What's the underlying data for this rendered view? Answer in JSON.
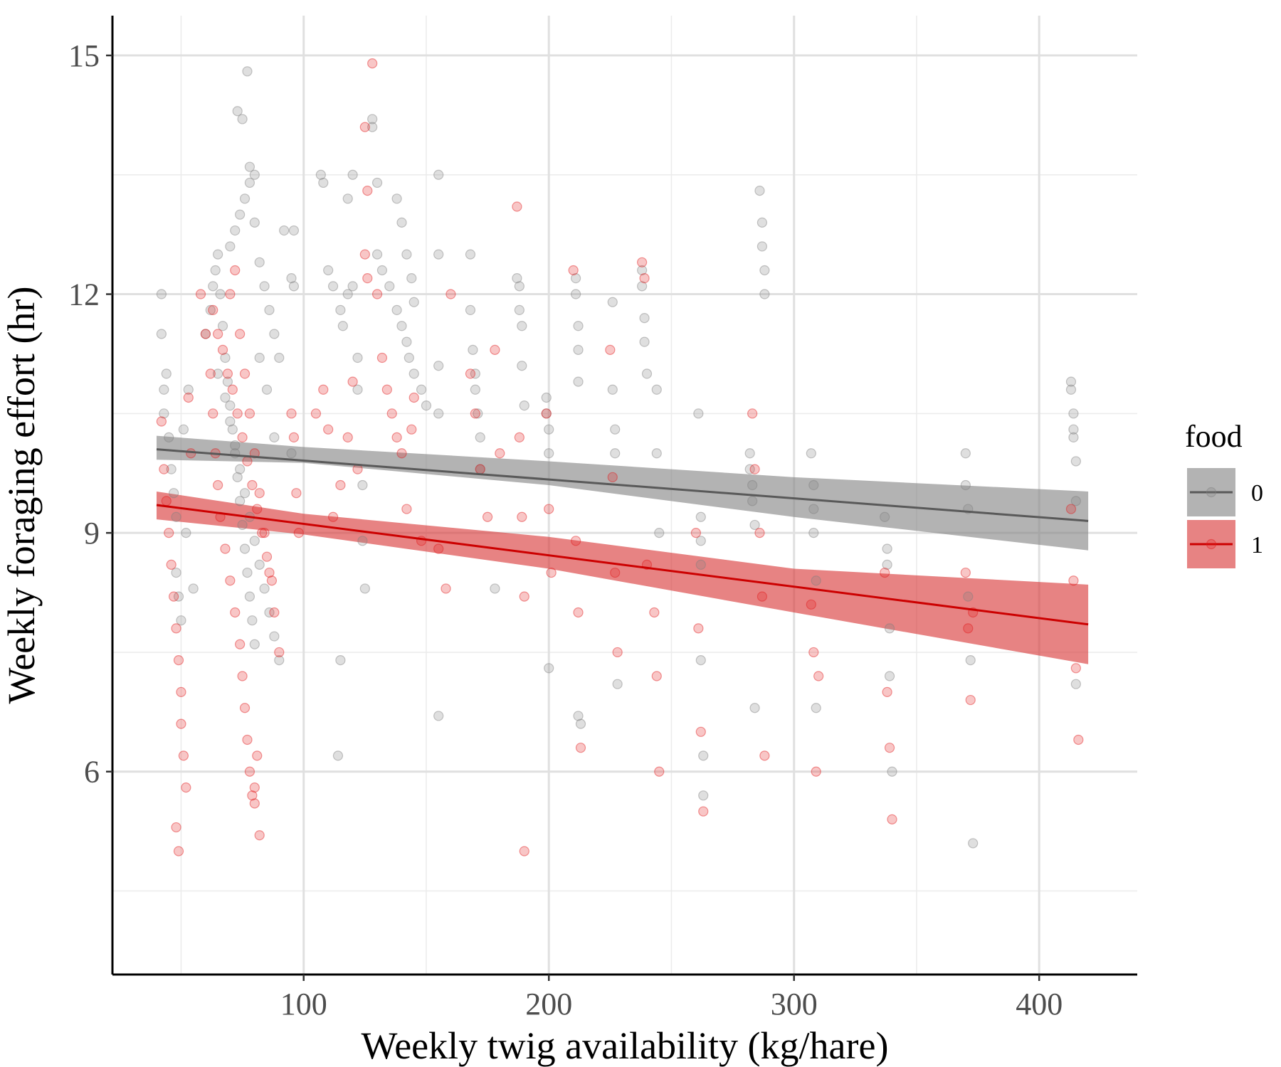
{
  "chart_data": {
    "type": "scatter",
    "title": "",
    "xlabel": "Weekly twig availability (kg/hare)",
    "ylabel": "Weekly foraging effort (hr)",
    "xlim": [
      22,
      440
    ],
    "ylim": [
      3.45,
      15.5
    ],
    "x_ticks": [
      100,
      200,
      300,
      400
    ],
    "y_ticks": [
      6,
      9,
      12,
      15
    ],
    "x_tick_labels": [
      "100",
      "200",
      "300",
      "400"
    ],
    "y_tick_labels": [
      "6",
      "9",
      "12",
      "15"
    ],
    "grid": true,
    "legend": {
      "title": "food",
      "placement": "right"
    },
    "point_opacity": 0.25,
    "series": [
      {
        "name": "0",
        "color": "#808080",
        "fit_line_color": "#595959",
        "band_color": "#808080",
        "fit": {
          "x": [
            40,
            420
          ],
          "y": [
            10.05,
            9.15
          ]
        },
        "band": {
          "x": [
            40,
            100,
            200,
            300,
            420
          ],
          "lower": [
            9.92,
            9.88,
            9.6,
            9.2,
            8.78
          ],
          "upper": [
            10.22,
            10.08,
            9.9,
            9.7,
            9.52
          ]
        },
        "x": [
          42,
          42,
          43,
          43,
          44,
          45,
          46,
          47,
          48,
          48,
          49,
          50,
          51,
          52,
          53,
          55,
          60,
          62,
          63,
          64,
          65,
          66,
          67,
          68,
          69,
          70,
          71,
          72,
          73,
          74,
          75,
          76,
          77,
          78,
          79,
          80,
          65,
          68,
          70,
          72,
          74,
          76,
          78,
          80,
          82,
          84,
          86,
          88,
          90,
          70,
          72,
          74,
          76,
          78,
          80,
          82,
          84,
          86,
          88,
          90,
          92,
          95,
          73,
          75,
          77,
          78,
          80,
          82,
          85,
          88,
          95,
          96,
          96,
          107,
          108,
          110,
          112,
          115,
          116,
          118,
          118,
          120,
          120,
          122,
          122,
          124,
          124,
          125,
          114,
          115,
          128,
          128,
          130,
          130,
          132,
          135,
          138,
          140,
          142,
          143,
          145,
          148,
          150,
          138,
          140,
          142,
          144,
          145,
          155,
          155,
          155,
          155,
          155,
          168,
          168,
          169,
          170,
          170,
          171,
          172,
          172,
          178,
          187,
          188,
          188,
          189,
          189,
          190,
          199,
          199,
          200,
          200,
          200,
          211,
          211,
          212,
          212,
          212,
          212,
          213,
          226,
          226,
          227,
          227,
          228,
          238,
          238,
          239,
          239,
          240,
          244,
          244,
          245,
          261,
          262,
          262,
          262,
          262,
          263,
          263,
          282,
          282,
          283,
          283,
          284,
          284,
          286,
          287,
          287,
          288,
          288,
          307,
          308,
          308,
          308,
          309,
          309,
          337,
          338,
          338,
          339,
          339,
          340,
          370,
          370,
          371,
          371,
          372,
          373,
          413,
          413,
          414,
          414,
          414,
          415,
          415,
          415
        ],
        "y": [
          12.0,
          11.5,
          10.8,
          10.5,
          11.0,
          10.2,
          9.8,
          9.5,
          9.2,
          8.5,
          8.2,
          7.9,
          10.3,
          9.0,
          10.8,
          8.3,
          11.5,
          11.8,
          12.1,
          12.3,
          12.5,
          12.0,
          11.6,
          11.2,
          10.9,
          10.6,
          10.3,
          10.0,
          9.7,
          9.4,
          9.1,
          8.8,
          8.5,
          8.2,
          7.9,
          7.6,
          11.0,
          10.7,
          10.4,
          10.1,
          9.8,
          9.5,
          9.2,
          8.9,
          8.6,
          8.3,
          8.0,
          7.7,
          7.4,
          12.6,
          12.8,
          13.0,
          13.2,
          13.4,
          12.9,
          12.4,
          12.1,
          11.8,
          11.5,
          11.2,
          12.8,
          12.2,
          14.3,
          14.2,
          14.8,
          13.6,
          13.5,
          11.2,
          10.8,
          10.2,
          10.0,
          12.8,
          12.1,
          13.5,
          13.4,
          12.3,
          12.1,
          11.8,
          11.6,
          12.0,
          13.2,
          13.5,
          12.1,
          11.2,
          10.8,
          9.6,
          8.9,
          8.3,
          6.2,
          7.4,
          14.2,
          14.1,
          13.4,
          12.5,
          12.3,
          12.1,
          11.8,
          11.6,
          11.4,
          11.2,
          11.0,
          10.8,
          10.6,
          13.2,
          12.9,
          12.5,
          12.2,
          11.9,
          13.5,
          12.5,
          11.1,
          10.5,
          6.7,
          12.5,
          11.8,
          11.3,
          11.0,
          10.8,
          10.5,
          10.2,
          9.8,
          8.3,
          12.2,
          12.1,
          11.8,
          11.6,
          11.1,
          10.6,
          10.7,
          10.5,
          10.3,
          10.0,
          7.3,
          12.2,
          12.0,
          11.6,
          11.3,
          10.9,
          6.7,
          6.6,
          11.9,
          10.8,
          10.3,
          10.0,
          7.1,
          12.3,
          12.1,
          11.7,
          11.4,
          11.0,
          10.8,
          10.0,
          9.0,
          10.5,
          9.2,
          8.9,
          8.6,
          7.4,
          6.2,
          5.7,
          10.0,
          9.8,
          9.6,
          9.4,
          9.1,
          6.8,
          13.3,
          12.9,
          12.6,
          12.3,
          12.0,
          10.0,
          9.6,
          9.3,
          9.0,
          8.4,
          6.8,
          9.2,
          8.8,
          8.6,
          7.8,
          7.2,
          6.0,
          10.0,
          9.6,
          9.3,
          8.2,
          7.4,
          5.1,
          10.9,
          10.8,
          10.5,
          10.3,
          10.2,
          9.9,
          9.4,
          7.1
        ]
      },
      {
        "name": "1",
        "color": "#e31a1c",
        "fit_line_color": "#cc0000",
        "band_color": "#d73030",
        "fit": {
          "x": [
            40,
            420
          ],
          "y": [
            9.35,
            7.85
          ]
        },
        "band": {
          "x": [
            40,
            100,
            200,
            300,
            420
          ],
          "lower": [
            9.17,
            8.98,
            8.55,
            8.0,
            7.35
          ],
          "upper": [
            9.52,
            9.24,
            8.95,
            8.55,
            8.35
          ]
        },
        "x": [
          42,
          43,
          44,
          45,
          46,
          47,
          48,
          49,
          50,
          50,
          51,
          52,
          53,
          54,
          48,
          49,
          58,
          60,
          62,
          63,
          64,
          65,
          66,
          68,
          70,
          72,
          74,
          75,
          76,
          77,
          78,
          80,
          82,
          63,
          65,
          67,
          69,
          71,
          73,
          75,
          77,
          79,
          81,
          83,
          85,
          87,
          70,
          72,
          74,
          76,
          78,
          80,
          82,
          84,
          86,
          88,
          90,
          80,
          79,
          81,
          95,
          96,
          97,
          98,
          105,
          108,
          110,
          112,
          115,
          118,
          120,
          122,
          125,
          126,
          125,
          126,
          128,
          130,
          132,
          134,
          136,
          138,
          140,
          142,
          144,
          145,
          148,
          155,
          158,
          160,
          168,
          170,
          172,
          175,
          178,
          180,
          187,
          188,
          189,
          190,
          190,
          199,
          200,
          201,
          210,
          211,
          212,
          213,
          225,
          226,
          227,
          228,
          238,
          239,
          240,
          243,
          244,
          245,
          260,
          261,
          262,
          263,
          283,
          284,
          286,
          287,
          288,
          307,
          308,
          309,
          310,
          337,
          338,
          339,
          340,
          370,
          371,
          372,
          373,
          413,
          414,
          415,
          416
        ],
        "y": [
          10.4,
          9.8,
          9.4,
          9.0,
          8.6,
          8.2,
          7.8,
          7.4,
          7.0,
          6.6,
          6.2,
          5.8,
          10.7,
          10.0,
          5.3,
          5.0,
          12.0,
          11.5,
          11.0,
          10.5,
          10.0,
          9.6,
          9.2,
          8.8,
          8.4,
          8.0,
          7.6,
          7.2,
          6.8,
          6.4,
          6.0,
          5.6,
          5.2,
          11.8,
          11.5,
          11.3,
          11.0,
          10.8,
          10.5,
          10.2,
          9.9,
          9.6,
          9.3,
          9.0,
          8.7,
          8.4,
          12.0,
          12.3,
          11.5,
          11.0,
          10.5,
          10.0,
          9.5,
          9.0,
          8.5,
          8.0,
          7.5,
          5.8,
          5.7,
          6.2,
          10.5,
          10.2,
          9.5,
          9.0,
          10.5,
          10.8,
          10.3,
          9.2,
          9.6,
          10.2,
          10.9,
          9.8,
          14.1,
          12.2,
          12.5,
          13.3,
          14.9,
          12.0,
          11.2,
          10.8,
          10.5,
          10.2,
          10.0,
          9.3,
          10.3,
          10.7,
          8.9,
          8.8,
          8.3,
          12.0,
          11.0,
          10.5,
          9.8,
          9.2,
          11.3,
          10.0,
          13.1,
          10.2,
          9.2,
          8.2,
          5.0,
          10.5,
          9.3,
          8.5,
          12.3,
          8.9,
          8.0,
          6.3,
          11.3,
          9.7,
          8.5,
          7.5,
          12.4,
          12.2,
          8.6,
          8.0,
          7.2,
          6.0,
          9.0,
          7.8,
          6.5,
          5.5,
          10.5,
          9.8,
          9.0,
          8.2,
          6.2,
          8.1,
          7.5,
          6.0,
          7.2,
          8.5,
          7.0,
          6.3,
          5.4,
          8.5,
          7.8,
          6.9,
          8.0,
          9.3,
          8.4,
          7.3,
          6.4
        ]
      }
    ]
  }
}
